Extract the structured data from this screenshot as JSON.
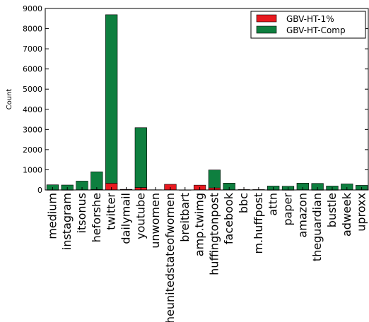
{
  "chart_data": {
    "type": "bar",
    "stacked": true,
    "title": "",
    "xlabel": "",
    "ylabel": "Count",
    "ylim": [
      0,
      9000
    ],
    "yticks": [
      0,
      1000,
      2000,
      3000,
      4000,
      5000,
      6000,
      7000,
      8000,
      9000
    ],
    "categories": [
      "medium",
      "instagram",
      "itsonus",
      "heforshe",
      "twitter",
      "dailymail",
      "youtube",
      "unwomen",
      "theunitedstateofwomen",
      "breitbart",
      "amp.twimg",
      "huffingtonpost",
      "facebook",
      "bbc",
      "m.huffpost",
      "attn",
      "paper",
      "amazon",
      "theguardian",
      "bustle",
      "adweek",
      "uproxx"
    ],
    "series": [
      {
        "name": "GBV-HT-1%",
        "color": "#e8191f",
        "values": [
          5,
          5,
          10,
          20,
          330,
          30,
          120,
          10,
          280,
          5,
          240,
          100,
          10,
          20,
          20,
          5,
          5,
          10,
          5,
          5,
          10,
          10
        ]
      },
      {
        "name": "GBV-HT-Comp",
        "color": "#0e7f3f",
        "values": [
          250,
          240,
          430,
          880,
          8360,
          0,
          2970,
          0,
          0,
          0,
          0,
          890,
          330,
          0,
          0,
          190,
          180,
          330,
          320,
          190,
          290,
          220
        ]
      }
    ],
    "grid": false,
    "legend_position": "top-right"
  }
}
